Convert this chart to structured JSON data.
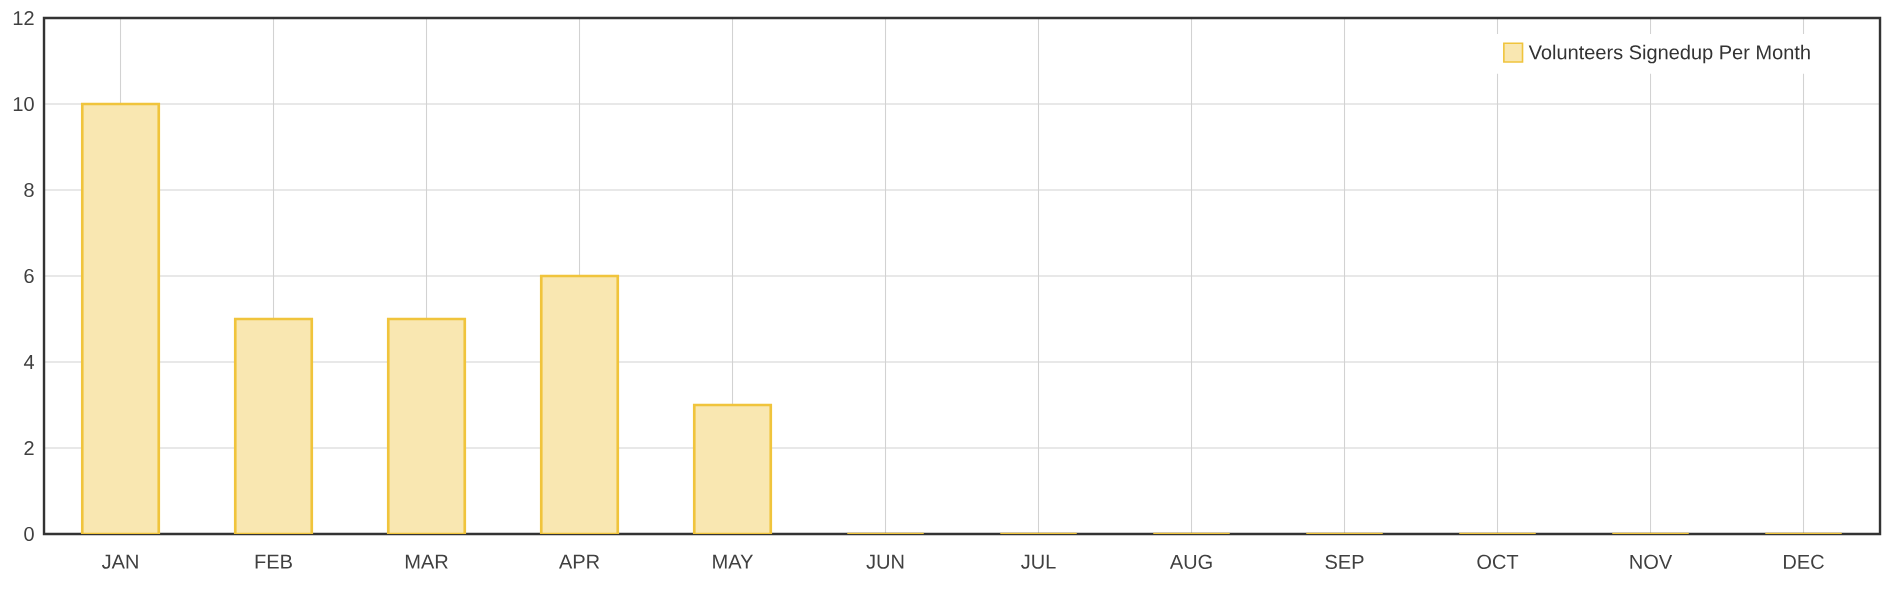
{
  "chart_data": {
    "type": "bar",
    "categories": [
      "JAN",
      "FEB",
      "MAR",
      "APR",
      "MAY",
      "JUN",
      "JUL",
      "AUG",
      "SEP",
      "OCT",
      "NOV",
      "DEC"
    ],
    "series": [
      {
        "name": "Volunteers Signedup Per Month",
        "color": "#f0c43c",
        "values": [
          10,
          5,
          5,
          6,
          3,
          0,
          0,
          0,
          0,
          0,
          0,
          0
        ]
      }
    ],
    "ylim": [
      0,
      12
    ],
    "yticks": [
      0,
      2,
      4,
      6,
      8,
      10,
      12
    ],
    "grid": true,
    "legend": "top right"
  }
}
